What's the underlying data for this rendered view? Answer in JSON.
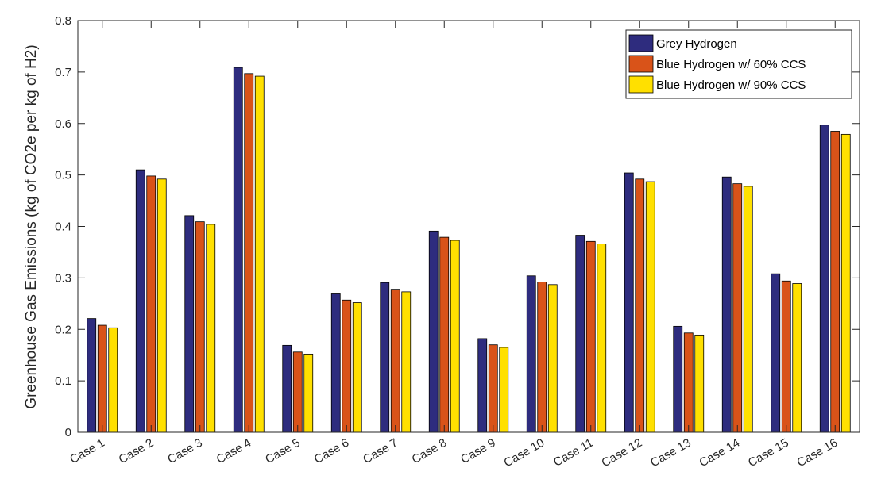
{
  "chart_data": {
    "type": "bar",
    "title": "",
    "xlabel": "",
    "ylabel": "Greenhouse Gas Emissions (kg of CO2e per kg of H2)",
    "ylim": [
      0,
      0.8
    ],
    "yticks": [
      "0",
      "0.1",
      "0.2",
      "0.3",
      "0.4",
      "0.5",
      "0.6",
      "0.7",
      "0.8"
    ],
    "grid": false,
    "legend_position": "top-right",
    "categories": [
      "Case 1",
      "Case 2",
      "Case 3",
      "Case 4",
      "Case 5",
      "Case 6",
      "Case 7",
      "Case 8",
      "Case 9",
      "Case 10",
      "Case 11",
      "Case 12",
      "Case 13",
      "Case 14",
      "Case 15",
      "Case 16"
    ],
    "series": [
      {
        "name": "Grey Hydrogen",
        "color": "#2E2C7E",
        "values": [
          0.221,
          0.51,
          0.421,
          0.709,
          0.169,
          0.269,
          0.291,
          0.391,
          0.182,
          0.304,
          0.383,
          0.504,
          0.206,
          0.496,
          0.308,
          0.597
        ]
      },
      {
        "name": "Blue Hydrogen w/ 60% CCS",
        "color": "#D95319",
        "values": [
          0.208,
          0.498,
          0.409,
          0.697,
          0.156,
          0.257,
          0.278,
          0.379,
          0.17,
          0.292,
          0.371,
          0.492,
          0.193,
          0.483,
          0.294,
          0.585
        ]
      },
      {
        "name": "Blue Hydrogen w/ 90% CCS",
        "color": "#FFE000",
        "values": [
          0.203,
          0.492,
          0.404,
          0.692,
          0.152,
          0.252,
          0.273,
          0.373,
          0.165,
          0.287,
          0.366,
          0.487,
          0.189,
          0.478,
          0.289,
          0.579
        ]
      }
    ]
  }
}
